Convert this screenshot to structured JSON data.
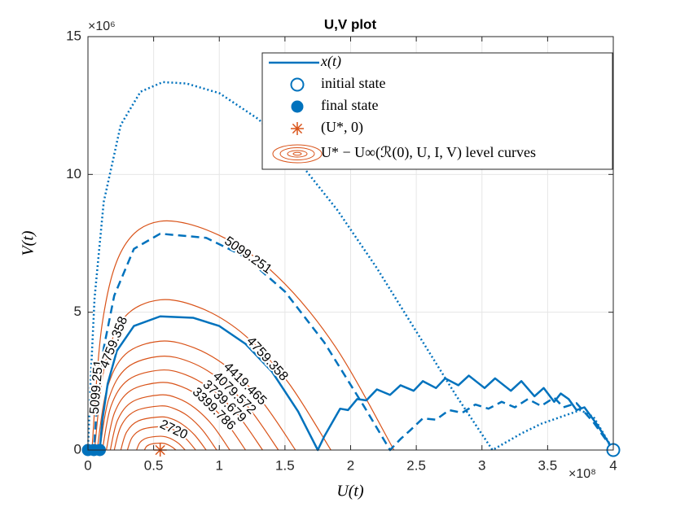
{
  "chart_data": {
    "type": "line",
    "title": "U,V plot",
    "xlabel": "U(t)",
    "ylabel": "V(t)",
    "x_exponent": "×10⁸",
    "y_exponent": "×10⁶",
    "xlim": [
      0,
      4
    ],
    "ylim": [
      0,
      15
    ],
    "xticks": [
      0,
      0.5,
      1,
      1.5,
      2,
      2.5,
      3,
      3.5,
      4
    ],
    "yticks": [
      0,
      5,
      10,
      15
    ],
    "grid": true,
    "legend_position": "northeast",
    "series": [
      {
        "name": "x(t)",
        "color": "#0072BD",
        "dash": "solid",
        "x": [
          4,
          3.88,
          3.78,
          3.72,
          3.66,
          3.6,
          3.55,
          3.47,
          3.4,
          3.3,
          3.22,
          3.1,
          3.02,
          2.9,
          2.82,
          2.72,
          2.65,
          2.55,
          2.48,
          2.38,
          2.3,
          2.2,
          2.12,
          2.05,
          1.98,
          1.92,
          1.86,
          1.8,
          1.75,
          1.6,
          1.4,
          1.2,
          1.0,
          0.8,
          0.55,
          0.35,
          0.22,
          0.15,
          0.11,
          0.09
        ],
        "values": [
          0,
          0.9,
          1.55,
          1.45,
          1.85,
          2.05,
          1.75,
          2.25,
          1.95,
          2.5,
          2.15,
          2.6,
          2.25,
          2.7,
          2.35,
          2.6,
          2.25,
          2.5,
          2.15,
          2.35,
          2.0,
          2.2,
          1.8,
          1.85,
          1.45,
          1.5,
          1.0,
          0.5,
          0,
          1.4,
          2.85,
          3.85,
          4.5,
          4.8,
          4.85,
          4.5,
          3.6,
          2.4,
          1.1,
          0
        ]
      },
      {
        "color": "#0072BD",
        "dash": "dashed",
        "x": [
          4,
          3.85,
          3.72,
          3.62,
          3.55,
          3.45,
          3.35,
          3.25,
          3.15,
          3.05,
          2.95,
          2.85,
          2.75,
          2.65,
          2.55,
          2.45,
          2.38,
          2.3,
          2.1,
          1.8,
          1.5,
          1.2,
          0.9,
          0.55,
          0.35,
          0.2,
          0.12,
          0.07,
          0.045
        ],
        "values": [
          0,
          1.0,
          1.7,
          1.55,
          1.9,
          1.6,
          1.85,
          1.55,
          1.75,
          1.5,
          1.65,
          1.35,
          1.45,
          1.1,
          1.15,
          0.7,
          0.4,
          0,
          1.6,
          3.9,
          5.75,
          7.0,
          7.7,
          7.85,
          7.3,
          5.6,
          3.7,
          1.8,
          0
        ]
      },
      {
        "color": "#0072BD",
        "dash": "dotted",
        "x": [
          4,
          3.85,
          3.75,
          3.6,
          3.45,
          3.3,
          3.08,
          2.8,
          2.5,
          2.2,
          1.9,
          1.6,
          1.3,
          1.0,
          0.75,
          0.57,
          0.4,
          0.25,
          0.12,
          0.05,
          0.02,
          0
        ],
        "values": [
          0,
          1.2,
          1.45,
          1.2,
          0.95,
          0.6,
          0,
          2.0,
          4.3,
          6.6,
          8.7,
          10.5,
          12.0,
          12.95,
          13.3,
          13.35,
          13.0,
          11.8,
          9.0,
          5.5,
          2.5,
          0
        ]
      }
    ],
    "initial_state": {
      "name": "initial state",
      "color": "#0072BD",
      "x": [
        4
      ],
      "values": [
        0
      ]
    },
    "final_state": {
      "name": "final state",
      "color": "#0072BD",
      "x": [
        0,
        0.045,
        0.09
      ],
      "values": [
        0,
        0,
        0
      ]
    },
    "equilibrium": {
      "name": "(U*, 0)",
      "color": "#D95319",
      "x": [
        0.55
      ],
      "values": [
        0
      ]
    },
    "level_curves": {
      "name": "U* − U∞(ℛ(0), U, I, V) level curves",
      "color": "#D95319",
      "curves": [
        {
          "level": 5099.251,
          "x": [
            0.03,
            0.108,
            0.264,
            0.55,
            0.995,
            1.44,
            1.885,
            2.33
          ],
          "values": [
            0,
            4.57,
            7.3,
            8.3,
            7.8,
            6.31,
            3.74,
            0
          ]
        },
        {
          "level": 4759.358,
          "x": [
            0.05,
            0.125,
            0.275,
            0.55,
            0.875,
            1.2,
            1.525,
            1.85
          ],
          "values": [
            0,
            3.0,
            4.8,
            5.45,
            5.12,
            4.14,
            2.45,
            0
          ]
        },
        {
          "level": 4419.465,
          "x": [
            0.07,
            0.142,
            0.286,
            0.55,
            0.808,
            1.065,
            1.323,
            1.58
          ],
          "values": [
            0,
            2.17,
            3.48,
            3.95,
            3.71,
            3.0,
            1.78,
            0
          ]
        },
        {
          "level": 4079.572,
          "x": [
            0.09,
            0.159,
            0.297,
            0.55,
            0.775,
            1.0,
            1.225,
            1.45
          ],
          "values": [
            0,
            1.87,
            2.99,
            3.4,
            3.2,
            2.58,
            1.53,
            0
          ]
        },
        {
          "level": 3739.679,
          "x": [
            0.11,
            0.176,
            0.308,
            0.55,
            0.745,
            0.94,
            1.135,
            1.33
          ],
          "values": [
            0,
            1.6,
            2.55,
            2.9,
            2.73,
            2.2,
            1.31,
            0
          ]
        },
        {
          "level": 3399.786,
          "x": [
            0.14,
            0.202,
            0.325,
            0.55,
            0.713,
            0.875,
            1.038,
            1.2
          ],
          "values": [
            0,
            1.35,
            2.16,
            2.45,
            2.3,
            1.86,
            1.1,
            0
          ]
        },
        {
          "x": [
            0.17,
            0.227,
            0.341,
            0.55,
            0.683,
            0.815,
            0.948,
            1.08
          ],
          "values": [
            0,
            1.1,
            1.76,
            2.0,
            1.88,
            1.52,
            0.9,
            0
          ]
        },
        {
          "x": [
            0.2,
            0.253,
            0.358,
            0.55,
            0.658,
            0.765,
            0.873,
            0.98
          ],
          "values": [
            0,
            0.88,
            1.41,
            1.6,
            1.5,
            1.22,
            0.72,
            0
          ]
        },
        {
          "x": [
            0.25,
            0.295,
            0.385,
            0.55,
            0.638,
            0.725,
            0.813,
            0.9
          ],
          "values": [
            0,
            0.66,
            1.06,
            1.2,
            1.13,
            0.91,
            0.54,
            0
          ]
        },
        {
          "level": 2720,
          "x": [
            0.3,
            0.338,
            0.413,
            0.55,
            0.618,
            0.685,
            0.753,
            0.82
          ],
          "values": [
            0,
            0.47,
            0.75,
            0.85,
            0.8,
            0.65,
            0.38,
            0
          ]
        },
        {
          "x": [
            0.37,
            0.397,
            0.451,
            0.55,
            0.598,
            0.645,
            0.693,
            0.74
          ],
          "values": [
            0,
            0.28,
            0.44,
            0.5,
            0.47,
            0.38,
            0.23,
            0
          ]
        },
        {
          "x": [
            0.43,
            0.448,
            0.484,
            0.55,
            0.58,
            0.61,
            0.64,
            0.67
          ],
          "values": [
            0,
            0.14,
            0.22,
            0.25,
            0.24,
            0.19,
            0.11,
            0
          ]
        }
      ]
    }
  }
}
